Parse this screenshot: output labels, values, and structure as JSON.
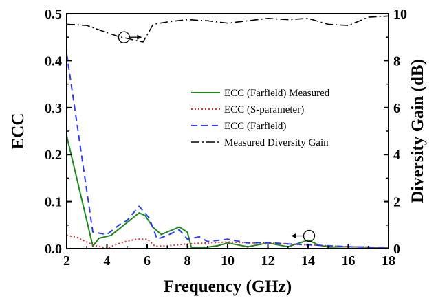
{
  "chart_data": {
    "type": "line",
    "xlabel": "Frequency (GHz)",
    "ylabel_left": "ECC",
    "ylabel_right": "Diversity Gain (dB)",
    "xlim": [
      2,
      18
    ],
    "ylim_left": [
      0.0,
      0.5
    ],
    "ylim_right": [
      0,
      10
    ],
    "x_ticks": [
      2,
      4,
      6,
      8,
      10,
      12,
      14,
      16,
      18
    ],
    "y_left_ticks": [
      "0.0",
      "0.1",
      "0.2",
      "0.3",
      "0.4",
      "0.5"
    ],
    "y_right_ticks": [
      "0",
      "2",
      "4",
      "6",
      "8",
      "10"
    ],
    "grid": false,
    "legend_position": "center-right",
    "series": [
      {
        "name": "ECC (Farfield) Measured",
        "axis": "left",
        "color": "#1a8a1a",
        "dash": "solid",
        "x": [
          2,
          3.3,
          3.6,
          4.2,
          5.6,
          5.9,
          6.3,
          6.7,
          7.6,
          8.0,
          8.2,
          9.0,
          9.5,
          10.0,
          11.0,
          12.0,
          13.0,
          14.0,
          14.5,
          15.0,
          16.0,
          17.0,
          18.0
        ],
        "y": [
          0.24,
          0.005,
          0.022,
          0.028,
          0.076,
          0.07,
          0.045,
          0.03,
          0.046,
          0.035,
          0.002,
          0.003,
          0.006,
          0.012,
          0.004,
          0.012,
          0.004,
          0.018,
          0.008,
          0.003,
          0.004,
          0.003,
          0.001
        ]
      },
      {
        "name": "ECC (S-parameter)",
        "axis": "left",
        "color": "#e03030",
        "dash": "dot",
        "x": [
          2,
          2.5,
          3.3,
          4.0,
          4.4,
          5.0,
          5.5,
          6.0,
          6.4,
          7.0,
          8.0,
          9.0,
          10.0,
          11.0,
          12.0,
          13.0,
          14.0,
          15.0,
          16.0,
          17.0,
          18.0
        ],
        "y": [
          0.028,
          0.024,
          0.008,
          0.0,
          0.008,
          0.016,
          0.02,
          0.02,
          0.005,
          0.006,
          0.01,
          0.012,
          0.014,
          0.012,
          0.012,
          0.01,
          0.008,
          0.006,
          0.004,
          0.003,
          0.001
        ]
      },
      {
        "name": "ECC (Farfield)",
        "axis": "left",
        "color": "#2a3cff",
        "dash": "dash",
        "x": [
          2,
          3.3,
          4.0,
          4.6,
          5.0,
          5.6,
          6.1,
          6.5,
          7.0,
          7.6,
          8.0,
          8.6,
          9.0,
          10.0,
          11.0,
          12.0,
          13.0,
          14.0,
          15.0,
          16.0,
          17.0,
          18.0
        ],
        "y": [
          0.415,
          0.035,
          0.03,
          0.05,
          0.06,
          0.09,
          0.065,
          0.02,
          0.028,
          0.04,
          0.02,
          0.025,
          0.015,
          0.02,
          0.012,
          0.013,
          0.01,
          0.008,
          0.006,
          0.004,
          0.003,
          0.002
        ]
      },
      {
        "name": "Measured Diversity Gain",
        "axis": "right",
        "color": "#000000",
        "dash": "dashdot",
        "x": [
          2,
          3.0,
          4.0,
          4.5,
          5.0,
          5.5,
          5.8,
          6.3,
          7.0,
          8.0,
          9.0,
          10.0,
          11.0,
          12.0,
          13.0,
          14.0,
          15.0,
          16.0,
          17.0,
          18.0
        ],
        "y": [
          9.55,
          9.5,
          9.2,
          9.05,
          8.95,
          8.85,
          8.8,
          9.55,
          9.65,
          9.75,
          9.7,
          9.6,
          9.7,
          9.8,
          9.75,
          9.8,
          9.55,
          9.5,
          9.85,
          9.9
        ]
      }
    ],
    "annotations": [
      {
        "type": "circle-arrow",
        "axis": "right",
        "x": 4.85,
        "y": 9.0,
        "arrow": "right"
      },
      {
        "type": "circle-arrow",
        "axis": "left",
        "x": 14.05,
        "y": 0.027,
        "arrow": "left"
      }
    ]
  }
}
